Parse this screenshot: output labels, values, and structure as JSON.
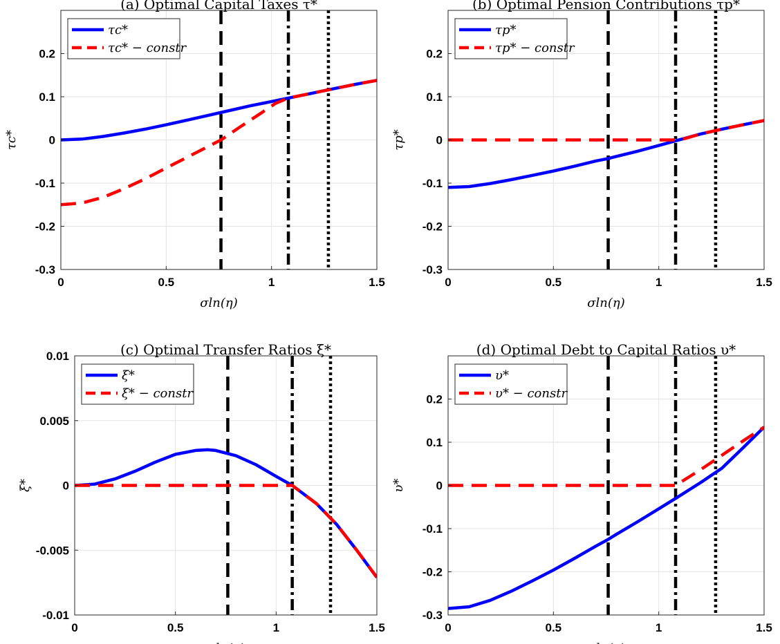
{
  "chart_data": [
    {
      "id": "a",
      "type": "line",
      "title": "(a) Optimal Capital Taxes τ*",
      "xlabel": "σln(η)",
      "ylabel": "τc*",
      "xlim": [
        0,
        1.5
      ],
      "ylim": [
        -0.3,
        0.3
      ],
      "xticks": [
        0,
        0.5,
        1,
        1.5
      ],
      "xtick_labels": [
        "0",
        "0.5",
        "1",
        "1.5"
      ],
      "yticks": [
        -0.3,
        -0.2,
        -0.1,
        0,
        0.1,
        0.2
      ],
      "ytick_labels": [
        "-0.3",
        "-0.2",
        "-0.1",
        "0",
        "0.1",
        "0.2"
      ],
      "grid": true,
      "legend_position": "top-left",
      "vlines": [
        {
          "x": 0.76,
          "style": "dashed"
        },
        {
          "x": 1.08,
          "style": "dashdot"
        },
        {
          "x": 1.27,
          "style": "dotted"
        }
      ],
      "series": [
        {
          "name": "τc*",
          "color": "#0000ff",
          "style": "solid",
          "x": [
            0,
            0.1,
            0.2,
            0.3,
            0.4,
            0.5,
            0.6,
            0.7,
            0.8,
            0.9,
            1.0,
            1.08,
            1.2,
            1.3,
            1.4,
            1.5
          ],
          "y": [
            0,
            0.002,
            0.008,
            0.016,
            0.025,
            0.035,
            0.046,
            0.057,
            0.068,
            0.079,
            0.089,
            0.097,
            0.109,
            0.119,
            0.129,
            0.138
          ]
        },
        {
          "name": "τc* − constr",
          "color": "#ff0000",
          "style": "dashed",
          "x": [
            0,
            0.1,
            0.2,
            0.3,
            0.4,
            0.5,
            0.6,
            0.7,
            0.76,
            0.85,
            0.95,
            1.02,
            1.08,
            1.2,
            1.3,
            1.4,
            1.5
          ],
          "y": [
            -0.15,
            -0.146,
            -0.133,
            -0.113,
            -0.09,
            -0.065,
            -0.04,
            -0.015,
            0.0,
            0.03,
            0.062,
            0.085,
            0.097,
            0.109,
            0.119,
            0.129,
            0.138
          ]
        }
      ]
    },
    {
      "id": "b",
      "type": "line",
      "title": "(b) Optimal Pension Contributions τp*",
      "xlabel": "σln(η)",
      "ylabel": "τp*",
      "xlim": [
        0,
        1.5
      ],
      "ylim": [
        -0.3,
        0.3
      ],
      "xticks": [
        0,
        0.5,
        1,
        1.5
      ],
      "xtick_labels": [
        "0",
        "0.5",
        "1",
        "1.5"
      ],
      "yticks": [
        -0.3,
        -0.2,
        -0.1,
        0,
        0.1,
        0.2
      ],
      "ytick_labels": [
        "-0.3",
        "-0.2",
        "-0.1",
        "0",
        "0.1",
        "0.2"
      ],
      "grid": true,
      "legend_position": "top-left",
      "vlines": [
        {
          "x": 0.76,
          "style": "dashed"
        },
        {
          "x": 1.08,
          "style": "dashdot"
        },
        {
          "x": 1.27,
          "style": "dotted"
        }
      ],
      "series": [
        {
          "name": "τp*",
          "color": "#0000ff",
          "style": "solid",
          "x": [
            0,
            0.1,
            0.2,
            0.3,
            0.4,
            0.5,
            0.6,
            0.7,
            0.76,
            0.8,
            0.9,
            1.0,
            1.08,
            1.2,
            1.3,
            1.4,
            1.5
          ],
          "y": [
            -0.11,
            -0.108,
            -0.101,
            -0.092,
            -0.082,
            -0.072,
            -0.061,
            -0.049,
            -0.043,
            -0.038,
            -0.026,
            -0.013,
            -0.002,
            0.014,
            0.025,
            0.035,
            0.045
          ]
        },
        {
          "name": "τp* − constr",
          "color": "#ff0000",
          "style": "dashed",
          "x": [
            0,
            0.2,
            0.4,
            0.6,
            0.8,
            1.0,
            1.1,
            1.2,
            1.3,
            1.4,
            1.5
          ],
          "y": [
            0,
            0,
            0,
            0,
            0,
            0,
            0.0,
            0.014,
            0.025,
            0.035,
            0.045
          ]
        }
      ]
    },
    {
      "id": "c",
      "type": "line",
      "title": "(c) Optimal Transfer Ratios ξ*",
      "xlabel": "σln(η)",
      "ylabel": "ξ*",
      "xlim": [
        0,
        1.5
      ],
      "ylim": [
        -0.01,
        0.01
      ],
      "xticks": [
        0,
        0.5,
        1,
        1.5
      ],
      "xtick_labels": [
        "0",
        "0.5",
        "1",
        "1.5"
      ],
      "yticks": [
        -0.01,
        -0.005,
        0,
        0.005,
        0.01
      ],
      "ytick_labels": [
        "-0.01",
        "-0.005",
        "0",
        "0.005",
        "0.01"
      ],
      "grid": true,
      "legend_position": "top-left",
      "vlines": [
        {
          "x": 0.76,
          "style": "dashed"
        },
        {
          "x": 1.08,
          "style": "dashdot"
        },
        {
          "x": 1.27,
          "style": "dotted"
        }
      ],
      "series": [
        {
          "name": "ξ* ",
          "color": "#0000ff",
          "style": "solid",
          "x": [
            0,
            0.1,
            0.2,
            0.3,
            0.4,
            0.5,
            0.6,
            0.66,
            0.7,
            0.8,
            0.9,
            1.0,
            1.08,
            1.2,
            1.3,
            1.4,
            1.5
          ],
          "y": [
            0,
            0.0001,
            0.0005,
            0.0011,
            0.0018,
            0.0024,
            0.0027,
            0.00275,
            0.0027,
            0.0023,
            0.0016,
            0.0007,
            0.0,
            -0.0014,
            -0.003,
            -0.005,
            -0.0071
          ]
        },
        {
          "name": "ξ* − constr",
          "color": "#ff0000",
          "style": "dashed",
          "x": [
            0,
            0.2,
            0.4,
            0.6,
            0.8,
            1.0,
            1.08,
            1.2,
            1.3,
            1.4,
            1.5
          ],
          "y": [
            0,
            0,
            0,
            0,
            0,
            0,
            0.0,
            -0.0014,
            -0.003,
            -0.005,
            -0.0071
          ]
        }
      ]
    },
    {
      "id": "d",
      "type": "line",
      "title": "(d) Optimal Debt to Capital Ratios υ*",
      "xlabel": "σln(η)",
      "ylabel": "υ*",
      "xlim": [
        0,
        1.5
      ],
      "ylim": [
        -0.3,
        0.3
      ],
      "xticks": [
        0,
        0.5,
        1,
        1.5
      ],
      "xtick_labels": [
        "0",
        "0.5",
        "1",
        "1.5"
      ],
      "yticks": [
        -0.3,
        -0.2,
        -0.1,
        0,
        0.1,
        0.2
      ],
      "ytick_labels": [
        "-0.3",
        "-0.2",
        "-0.1",
        "0",
        "0.1",
        "0.2"
      ],
      "grid": true,
      "legend_position": "top-left",
      "vlines": [
        {
          "x": 0.76,
          "style": "dashed"
        },
        {
          "x": 1.08,
          "style": "dashdot"
        },
        {
          "x": 1.27,
          "style": "dotted"
        }
      ],
      "series": [
        {
          "name": "υ*",
          "color": "#0000ff",
          "style": "solid",
          "x": [
            0,
            0.1,
            0.2,
            0.3,
            0.4,
            0.5,
            0.6,
            0.7,
            0.76,
            0.8,
            0.9,
            1.0,
            1.08,
            1.2,
            1.3,
            1.4,
            1.5
          ],
          "y": [
            -0.285,
            -0.281,
            -0.266,
            -0.245,
            -0.221,
            -0.196,
            -0.169,
            -0.141,
            -0.125,
            -0.113,
            -0.084,
            -0.054,
            -0.03,
            0.007,
            0.04,
            0.087,
            0.135
          ]
        },
        {
          "name": "υ* − constr",
          "color": "#ff0000",
          "style": "dashed",
          "x": [
            0,
            0.2,
            0.4,
            0.6,
            0.8,
            1.0,
            1.08,
            1.2,
            1.3,
            1.4,
            1.5
          ],
          "y": [
            0,
            0,
            0,
            0,
            0,
            0,
            0.0,
            0.037,
            0.07,
            0.103,
            0.135
          ]
        }
      ]
    }
  ]
}
